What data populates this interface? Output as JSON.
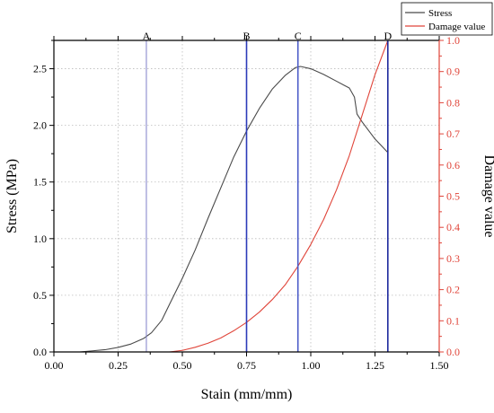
{
  "chart_data": {
    "type": "line",
    "title": "",
    "xlabel": "Stain (mm/mm)",
    "ylabel_left": "Stress (MPa)",
    "ylabel_right": "Damage value",
    "xlim": [
      0,
      1.5
    ],
    "ylim_left": [
      0,
      2.75
    ],
    "ylim_right": [
      0,
      1.0
    ],
    "x_ticks": [
      0.0,
      0.25,
      0.5,
      0.75,
      1.0,
      1.25,
      1.5
    ],
    "x_tick_labels": [
      "0.00",
      "0.25",
      "0.50",
      "0.75",
      "1.00",
      "1.25",
      "1.50"
    ],
    "y_left_ticks": [
      0.0,
      0.5,
      1.0,
      1.5,
      2.0,
      2.5
    ],
    "y_left_tick_labels": [
      "0.0",
      "0.5",
      "1.0",
      "1.5",
      "2.0",
      "2.5"
    ],
    "y_right_ticks": [
      0,
      0.1,
      0.2,
      0.3,
      0.4,
      0.5,
      0.6,
      0.7,
      0.8,
      0.9,
      1.0
    ],
    "y_right_tick_labels": [
      "0.0",
      "0.1",
      "0.2",
      "0.3",
      "0.4",
      "0.5",
      "0.6",
      "0.7",
      "0.8",
      "0.9",
      "1.0"
    ],
    "grid": true,
    "legend_position": "top-right",
    "series": [
      {
        "name": "Stress",
        "axis": "left",
        "color": "#4a4a4a",
        "points": [
          [
            0.1,
            0.0
          ],
          [
            0.15,
            0.01
          ],
          [
            0.2,
            0.02
          ],
          [
            0.25,
            0.04
          ],
          [
            0.3,
            0.07
          ],
          [
            0.35,
            0.12
          ],
          [
            0.38,
            0.17
          ],
          [
            0.42,
            0.28
          ],
          [
            0.45,
            0.42
          ],
          [
            0.5,
            0.65
          ],
          [
            0.55,
            0.9
          ],
          [
            0.6,
            1.18
          ],
          [
            0.65,
            1.45
          ],
          [
            0.7,
            1.72
          ],
          [
            0.75,
            1.95
          ],
          [
            0.8,
            2.15
          ],
          [
            0.85,
            2.32
          ],
          [
            0.9,
            2.44
          ],
          [
            0.94,
            2.51
          ],
          [
            0.96,
            2.52
          ],
          [
            1.0,
            2.5
          ],
          [
            1.05,
            2.45
          ],
          [
            1.1,
            2.39
          ],
          [
            1.15,
            2.33
          ],
          [
            1.17,
            2.25
          ],
          [
            1.18,
            2.1
          ],
          [
            1.2,
            2.03
          ],
          [
            1.25,
            1.88
          ],
          [
            1.3,
            1.76
          ]
        ]
      },
      {
        "name": "Damage value",
        "axis": "right",
        "color": "#e0453a",
        "points": [
          [
            0.45,
            0.0
          ],
          [
            0.5,
            0.005
          ],
          [
            0.55,
            0.015
          ],
          [
            0.6,
            0.028
          ],
          [
            0.65,
            0.045
          ],
          [
            0.7,
            0.068
          ],
          [
            0.75,
            0.095
          ],
          [
            0.8,
            0.128
          ],
          [
            0.85,
            0.168
          ],
          [
            0.9,
            0.215
          ],
          [
            0.95,
            0.275
          ],
          [
            1.0,
            0.345
          ],
          [
            1.05,
            0.425
          ],
          [
            1.1,
            0.52
          ],
          [
            1.15,
            0.63
          ],
          [
            1.2,
            0.76
          ],
          [
            1.25,
            0.89
          ],
          [
            1.3,
            1.0
          ]
        ]
      }
    ],
    "vertical_markers": [
      {
        "label": "A",
        "x": 0.36,
        "color": "#8080c8"
      },
      {
        "label": "B",
        "x": 0.75,
        "color": "#2c3bb8"
      },
      {
        "label": "C",
        "x": 0.95,
        "color": "#4b5bc8"
      },
      {
        "label": "D",
        "x": 1.3,
        "color": "#1f2a9e"
      }
    ],
    "colors": {
      "left_axis": "#000000",
      "right_axis": "#e0453a",
      "grid": "#bbbbbb"
    }
  }
}
